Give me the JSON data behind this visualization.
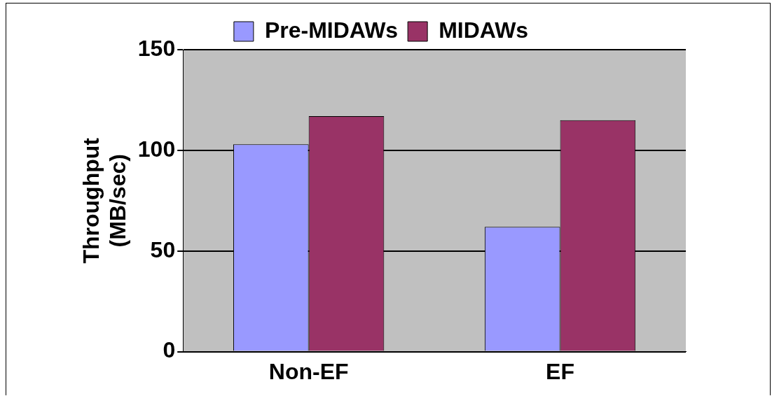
{
  "chart_data": {
    "type": "bar",
    "ylabel": "Throughput\n(MB/sec)",
    "categories": [
      "Non-EF",
      "EF"
    ],
    "series": [
      {
        "name": "Pre-MIDAWs",
        "color": "#9999ff",
        "values": [
          103,
          62
        ]
      },
      {
        "name": "MIDAWs",
        "color": "#993366",
        "values": [
          117,
          115
        ]
      }
    ],
    "ylim": [
      0,
      150
    ],
    "yticks": [
      0,
      50,
      100,
      150
    ],
    "grid": "y",
    "legend": "top"
  }
}
